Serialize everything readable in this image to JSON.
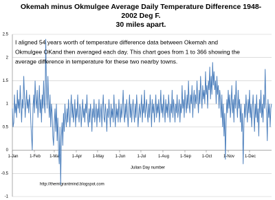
{
  "chart_data": {
    "type": "line",
    "title": [
      "Okemah minus Okmulgee Average Daily Temperature Difference 1948-",
      "2002 Deg F.",
      "30 miles apart."
    ],
    "annotation": [
      "I aligned 54 years worth of temperature difference data between Okemah and",
      "Okmulgee OKand then averaged each day. This chart goes from 1 to 366 showing the",
      "average difference in temperature for these two nearby towns."
    ],
    "x_label": "Julian Day number",
    "footer": "http://themigrantmind.blogspot.com",
    "color": "#4f81bd",
    "grid": true,
    "xlim": [
      1,
      366
    ],
    "ylim": [
      -1,
      2.5
    ],
    "yticks": [
      -1,
      -0.5,
      0,
      0.5,
      1,
      1.5,
      2,
      2.5
    ],
    "xticks": [
      {
        "value": 1,
        "label": "1-Jan"
      },
      {
        "value": 32,
        "label": "1-Feb"
      },
      {
        "value": 60,
        "label": "1-Mar"
      },
      {
        "value": 91,
        "label": "1-Apr"
      },
      {
        "value": 121,
        "label": "1-May"
      },
      {
        "value": 152,
        "label": "1-Jun"
      },
      {
        "value": 182,
        "label": "1-Jul"
      },
      {
        "value": 213,
        "label": "1-Aug"
      },
      {
        "value": 244,
        "label": "1-Sep"
      },
      {
        "value": 274,
        "label": "1-Oct"
      },
      {
        "value": 305,
        "label": "1-Nov"
      },
      {
        "value": 335,
        "label": "1-Dec"
      }
    ],
    "x": [
      1,
      2,
      3,
      4,
      5,
      6,
      7,
      8,
      9,
      10,
      11,
      12,
      13,
      14,
      15,
      16,
      17,
      18,
      19,
      20,
      21,
      22,
      23,
      24,
      25,
      26,
      27,
      28,
      29,
      30,
      31,
      32,
      33,
      34,
      35,
      36,
      37,
      38,
      39,
      40,
      41,
      42,
      43,
      44,
      45,
      46,
      47,
      48,
      49,
      50,
      51,
      52,
      53,
      54,
      55,
      56,
      57,
      58,
      59,
      60,
      61,
      62,
      63,
      64,
      65,
      66,
      67,
      68,
      69,
      70,
      71,
      72,
      73,
      74,
      75,
      76,
      77,
      78,
      79,
      80,
      81,
      82,
      83,
      84,
      85,
      86,
      87,
      88,
      89,
      90,
      91,
      92,
      93,
      94,
      95,
      96,
      97,
      98,
      99,
      100,
      101,
      102,
      103,
      104,
      105,
      106,
      107,
      108,
      109,
      110,
      111,
      112,
      113,
      114,
      115,
      116,
      117,
      118,
      119,
      120,
      121,
      122,
      123,
      124,
      125,
      126,
      127,
      128,
      129,
      130,
      131,
      132,
      133,
      134,
      135,
      136,
      137,
      138,
      139,
      140,
      141,
      142,
      143,
      144,
      145,
      146,
      147,
      148,
      149,
      150,
      151,
      152,
      153,
      154,
      155,
      156,
      157,
      158,
      159,
      160,
      161,
      162,
      163,
      164,
      165,
      166,
      167,
      168,
      169,
      170,
      171,
      172,
      173,
      174,
      175,
      176,
      177,
      178,
      179,
      180,
      181,
      182,
      183,
      184,
      185,
      186,
      187,
      188,
      189,
      190,
      191,
      192,
      193,
      194,
      195,
      196,
      197,
      198,
      199,
      200,
      201,
      202,
      203,
      204,
      205,
      206,
      207,
      208,
      209,
      210,
      211,
      212,
      213,
      214,
      215,
      216,
      217,
      218,
      219,
      220,
      221,
      222,
      223,
      224,
      225,
      226,
      227,
      228,
      229,
      230,
      231,
      232,
      233,
      234,
      235,
      236,
      237,
      238,
      239,
      240,
      241,
      242,
      243,
      244,
      245,
      246,
      247,
      248,
      249,
      250,
      251,
      252,
      253,
      254,
      255,
      256,
      257,
      258,
      259,
      260,
      261,
      262,
      263,
      264,
      265,
      266,
      267,
      268,
      269,
      270,
      271,
      272,
      273,
      274,
      275,
      276,
      277,
      278,
      279,
      280,
      281,
      282,
      283,
      284,
      285,
      286,
      287,
      288,
      289,
      290,
      291,
      292,
      293,
      294,
      295,
      296,
      297,
      298,
      299,
      300,
      301,
      302,
      303,
      304,
      305,
      306,
      307,
      308,
      309,
      310,
      311,
      312,
      313,
      314,
      315,
      316,
      317,
      318,
      319,
      320,
      321,
      322,
      323,
      324,
      325,
      326,
      327,
      328,
      329,
      330,
      331,
      332,
      333,
      334,
      335,
      336,
      337,
      338,
      339,
      340,
      341,
      342,
      343,
      344,
      345,
      346,
      347,
      348,
      349,
      350,
      351,
      352,
      353,
      354,
      355,
      356,
      357,
      358,
      359,
      360,
      361,
      362,
      363,
      364,
      365,
      366
    ],
    "values": [
      0.9,
      0.5,
      0.6,
      1.2,
      0.8,
      1.0,
      0.7,
      1.3,
      0.9,
      1.1,
      0.8,
      1.4,
      1.0,
      0.6,
      1.1,
      0.9,
      1.6,
      1.2,
      0.7,
      1.0,
      1.3,
      0.9,
      1.1,
      0.8,
      1.2,
      1.0,
      0.6,
      0.3,
      0.0,
      0.9,
      1.2,
      0.8,
      1.5,
      1.1,
      0.9,
      1.3,
      0.7,
      1.0,
      1.4,
      0.8,
      1.1,
      0.6,
      1.2,
      0.9,
      1.5,
      1.0,
      0.8,
      2.4,
      1.3,
      0.9,
      1.6,
      1.1,
      0.7,
      1.2,
      0.5,
      1.0,
      0.8,
      0.3,
      0.1,
      0.6,
      0.9,
      0.4,
      1.0,
      0.2,
      0.7,
      0.0,
      -0.3,
      0.5,
      -0.75,
      0.3,
      0.6,
      0.1,
      0.8,
      0.4,
      1.0,
      0.7,
      0.5,
      0.9,
      0.6,
      1.1,
      0.8,
      0.5,
      0.9,
      1.2,
      0.7,
      1.0,
      0.6,
      0.8,
      1.1,
      0.5,
      0.9,
      0.7,
      1.2,
      0.8,
      0.6,
      1.0,
      0.9,
      0.5,
      0.8,
      1.1,
      0.7,
      0.9,
      0.6,
      1.0,
      0.8,
      1.2,
      0.7,
      0.5,
      0.9,
      0.6,
      1.0,
      0.8,
      0.4,
      0.9,
      0.7,
      1.1,
      0.6,
      0.8,
      1.0,
      0.5,
      0.9,
      0.7,
      1.1,
      0.6,
      0.8,
      1.0,
      0.5,
      0.9,
      1.2,
      0.7,
      0.6,
      1.0,
      0.8,
      0.4,
      0.9,
      0.7,
      1.1,
      0.8,
      0.5,
      1.0,
      0.7,
      0.9,
      0.6,
      1.2,
      0.8,
      0.5,
      1.0,
      0.7,
      0.9,
      0.6,
      1.1,
      0.8,
      0.6,
      1.0,
      0.7,
      0.9,
      1.3,
      0.8,
      0.6,
      1.0,
      0.7,
      1.1,
      0.8,
      0.5,
      0.9,
      1.2,
      0.7,
      1.0,
      0.6,
      0.9,
      1.1,
      0.8,
      0.6,
      1.0,
      0.7,
      1.2,
      0.9,
      0.5,
      0.8,
      1.0,
      0.7,
      0.9,
      1.2,
      0.6,
      1.0,
      0.8,
      1.3,
      0.7,
      0.9,
      1.1,
      0.8,
      0.6,
      1.0,
      0.7,
      1.2,
      0.9,
      0.5,
      1.1,
      0.8,
      1.0,
      0.6,
      0.9,
      1.2,
      0.7,
      1.0,
      0.8,
      1.1,
      0.6,
      0.9,
      1.3,
      0.8,
      1.0,
      0.7,
      1.2,
      0.9,
      0.6,
      1.1,
      0.8,
      1.0,
      0.7,
      1.2,
      0.9,
      0.6,
      1.0,
      0.8,
      1.3,
      0.7,
      1.1,
      0.9,
      0.6,
      1.0,
      0.8,
      1.2,
      0.7,
      0.9,
      1.1,
      0.6,
      1.0,
      0.8,
      1.4,
      0.9,
      1.1,
      0.7,
      1.3,
      1.0,
      0.8,
      1.2,
      0.9,
      1.5,
      1.0,
      0.8,
      1.2,
      1.0,
      1.4,
      0.7,
      1.1,
      1.3,
      0.9,
      1.2,
      1.0,
      1.5,
      1.1,
      0.8,
      1.3,
      1.0,
      1.6,
      1.2,
      0.9,
      1.4,
      1.1,
      1.3,
      1.0,
      1.7,
      1.2,
      1.4,
      0.9,
      1.5,
      1.3,
      1.8,
      1.1,
      1.6,
      1.2,
      1.9,
      1.4,
      1.7,
      1.3,
      1.5,
      1.0,
      1.6,
      1.2,
      1.4,
      0.9,
      1.3,
      1.1,
      0.7,
      1.2,
      0.5,
      1.0,
      0.3,
      0.8,
      -0.2,
      0.6,
      1.1,
      0.8,
      1.3,
      0.9,
      1.2,
      0.7,
      1.0,
      1.4,
      0.8,
      1.1,
      0.6,
      1.2,
      0.9,
      1.5,
      1.0,
      0.7,
      1.3,
      0.9,
      1.1,
      0.6,
      1.0,
      0.4,
      0.8,
      -0.3,
      0.5,
      1.0,
      0.7,
      1.2,
      0.9,
      0.6,
      1.1,
      0.8,
      1.3,
      0.7,
      1.0,
      0.5,
      0.9,
      1.2,
      0.8,
      0.4,
      1.0,
      0.7,
      1.2,
      0.6,
      0.9,
      0.3,
      1.1,
      0.8,
      1.3,
      0.7,
      1.0,
      0.6,
      1.2,
      0.9,
      1.75,
      1.0,
      0.8,
      0.2,
      1.1,
      0.7,
      1.0,
      0.5,
      0.9,
      1.0
    ]
  }
}
